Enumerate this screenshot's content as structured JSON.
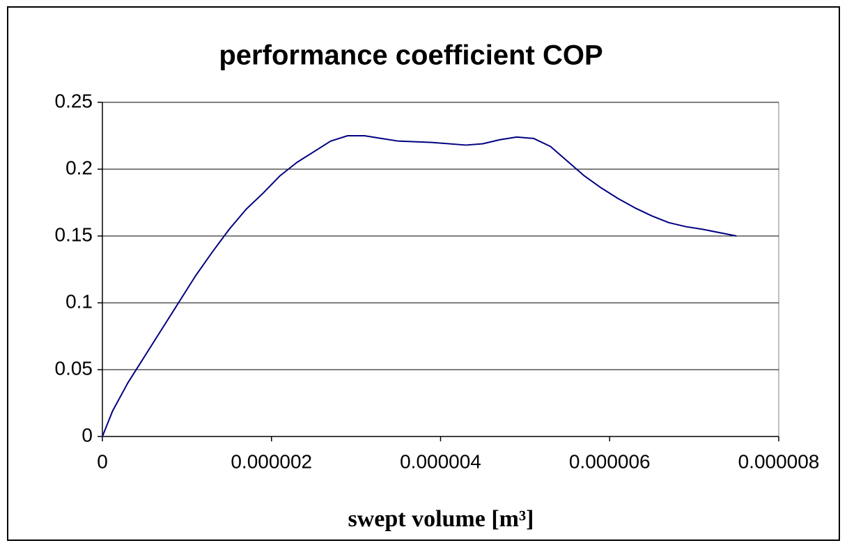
{
  "chart_data": {
    "type": "line",
    "title": "performance coefficient COP",
    "xlabel": "swept volume [m³]",
    "x": [
      0,
      1.2e-07,
      3e-07,
      5e-07,
      7e-07,
      9e-07,
      1.1e-06,
      1.3e-06,
      1.5e-06,
      1.7e-06,
      1.9e-06,
      2.1e-06,
      2.3e-06,
      2.5e-06,
      2.7e-06,
      2.9e-06,
      3.1e-06,
      3.3e-06,
      3.5e-06,
      3.9e-06,
      4.3e-06,
      4.5e-06,
      4.7e-06,
      4.9e-06,
      5.1e-06,
      5.3e-06,
      5.5e-06,
      5.7e-06,
      5.9e-06,
      6.1e-06,
      6.3e-06,
      6.5e-06,
      6.7e-06,
      6.9e-06,
      7.1e-06,
      7.5e-06
    ],
    "series": [
      {
        "name": "COP",
        "color": "#000080",
        "values": [
          0,
          0.019,
          0.04,
          0.06,
          0.08,
          0.1,
          0.12,
          0.138,
          0.155,
          0.17,
          0.182,
          0.195,
          0.205,
          0.213,
          0.221,
          0.225,
          0.225,
          0.223,
          0.221,
          0.22,
          0.218,
          0.219,
          0.222,
          0.224,
          0.223,
          0.217,
          0.206,
          0.195,
          0.186,
          0.178,
          0.171,
          0.165,
          0.16,
          0.157,
          0.155,
          0.15
        ]
      }
    ],
    "xlim": [
      0,
      8e-06
    ],
    "xticks": [
      0,
      2e-06,
      4e-06,
      6e-06,
      8e-06
    ],
    "ylim": [
      0,
      0.25
    ],
    "yticks": [
      0,
      0.05,
      0.1,
      0.15,
      0.2,
      0.25
    ],
    "grid": true
  }
}
